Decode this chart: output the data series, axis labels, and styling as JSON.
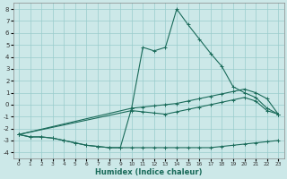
{
  "xlabel": "Humidex (Indice chaleur)",
  "background_color": "#cce8e8",
  "grid_color": "#99cccc",
  "line_color": "#1a6b5a",
  "xlim": [
    -0.5,
    23.5
  ],
  "ylim": [
    -4.5,
    8.5
  ],
  "xticks": [
    0,
    1,
    2,
    3,
    4,
    5,
    6,
    7,
    8,
    9,
    10,
    11,
    12,
    13,
    14,
    15,
    16,
    17,
    18,
    19,
    20,
    21,
    22,
    23
  ],
  "yticks": [
    -4,
    -3,
    -2,
    -1,
    0,
    1,
    2,
    3,
    4,
    5,
    6,
    7,
    8
  ],
  "series": [
    {
      "x": [
        0,
        1,
        2,
        3,
        4,
        5,
        6,
        7,
        8,
        9,
        10,
        11,
        12,
        13,
        14,
        15,
        16,
        17,
        18,
        19,
        20,
        21,
        22,
        23
      ],
      "y": [
        -2.5,
        -2.7,
        -2.7,
        -2.8,
        -3.0,
        -3.2,
        -3.4,
        -3.5,
        -3.6,
        -3.6,
        -3.6,
        -3.6,
        -3.6,
        -3.6,
        -3.6,
        -3.6,
        -3.6,
        -3.6,
        -3.5,
        -3.4,
        -3.3,
        -3.2,
        -3.1,
        -3.0
      ]
    },
    {
      "x": [
        0,
        1,
        2,
        3,
        4,
        5,
        6,
        7,
        8,
        9,
        10,
        11,
        12,
        13,
        14,
        15,
        16,
        17,
        18,
        19,
        20,
        21,
        22,
        23
      ],
      "y": [
        -2.5,
        -2.7,
        -2.7,
        -2.8,
        -3.0,
        -3.2,
        -3.4,
        -3.5,
        -3.6,
        -3.6,
        -0.3,
        4.8,
        4.5,
        4.8,
        8.0,
        6.7,
        5.5,
        4.3,
        3.2,
        1.5,
        1.0,
        0.6,
        -0.3,
        -0.8
      ]
    },
    {
      "x": [
        0,
        10,
        11,
        12,
        13,
        14,
        15,
        16,
        17,
        18,
        19,
        20,
        21,
        22,
        23
      ],
      "y": [
        -2.5,
        -0.3,
        -0.2,
        -0.1,
        0.0,
        0.1,
        0.3,
        0.5,
        0.7,
        0.9,
        1.1,
        1.3,
        1.0,
        0.5,
        -0.8
      ]
    },
    {
      "x": [
        0,
        10,
        11,
        12,
        13,
        14,
        15,
        16,
        17,
        18,
        19,
        20,
        21,
        22,
        23
      ],
      "y": [
        -2.5,
        -0.5,
        -0.6,
        -0.7,
        -0.8,
        -0.6,
        -0.4,
        -0.2,
        0.0,
        0.2,
        0.4,
        0.6,
        0.3,
        -0.5,
        -0.8
      ]
    }
  ]
}
